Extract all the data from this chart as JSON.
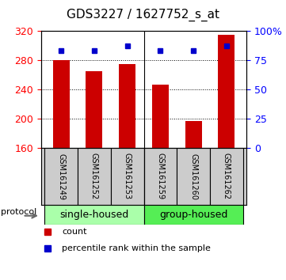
{
  "title": "GDS3227 / 1627752_s_at",
  "samples": [
    "GSM161249",
    "GSM161252",
    "GSM161253",
    "GSM161259",
    "GSM161260",
    "GSM161262"
  ],
  "counts": [
    280,
    265,
    275,
    247,
    197,
    315
  ],
  "percentiles": [
    83,
    83,
    87,
    83,
    83,
    87
  ],
  "ylim_left": [
    160,
    320
  ],
  "ylim_right": [
    0,
    100
  ],
  "yticks_left": [
    160,
    200,
    240,
    280,
    320
  ],
  "yticks_right": [
    0,
    25,
    50,
    75,
    100
  ],
  "ytick_labels_right": [
    "0",
    "25",
    "50",
    "75",
    "100%"
  ],
  "bar_color": "#cc0000",
  "dot_color": "#0000cc",
  "bar_width": 0.5,
  "group1_label": "single-housed",
  "group2_label": "group-housed",
  "protocol_label": "protocol",
  "legend_count": "count",
  "legend_percentile": "percentile rank within the sample",
  "bg_color": "#ffffff",
  "plot_bg": "#ffffff",
  "gray_box_color": "#cccccc",
  "green_color": "#aaffaa",
  "group2_green": "#55ee55",
  "title_fontsize": 11,
  "tick_fontsize": 9,
  "sample_fontsize": 7,
  "legend_fontsize": 8,
  "group_fontsize": 9
}
